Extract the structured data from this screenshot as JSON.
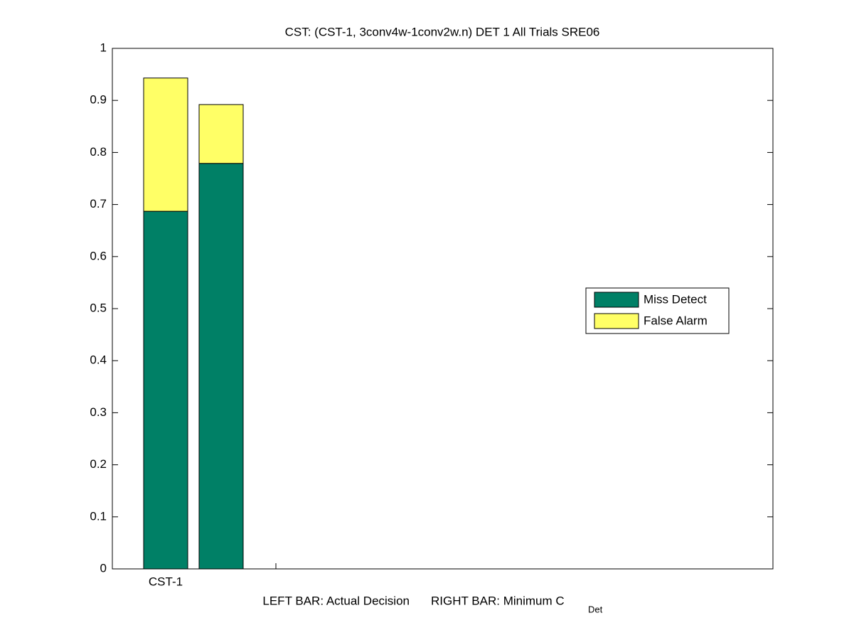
{
  "chart_data": {
    "type": "stacked_bar",
    "title": "CST: (CST-1, 3conv4w-1conv2w.n) DET 1 All Trials SRE06",
    "xlabel": {
      "left": "LEFT BAR: Actual Decision",
      "right": "RIGHT BAR: Minimum C",
      "right_subscript": "Det"
    },
    "categories": [
      "CST-1",
      null
    ],
    "series": [
      {
        "name": "Miss Detect",
        "color": "#008066",
        "values": [
          0.687,
          0.779
        ]
      },
      {
        "name": "False Alarm",
        "color": "#ffff66",
        "values": [
          0.256,
          0.113
        ]
      }
    ],
    "ylim": [
      0,
      1
    ],
    "yticks": [
      0,
      0.1,
      0.2,
      0.3,
      0.4,
      0.5,
      0.6,
      0.7,
      0.8,
      0.9,
      1
    ],
    "legend": "east"
  }
}
